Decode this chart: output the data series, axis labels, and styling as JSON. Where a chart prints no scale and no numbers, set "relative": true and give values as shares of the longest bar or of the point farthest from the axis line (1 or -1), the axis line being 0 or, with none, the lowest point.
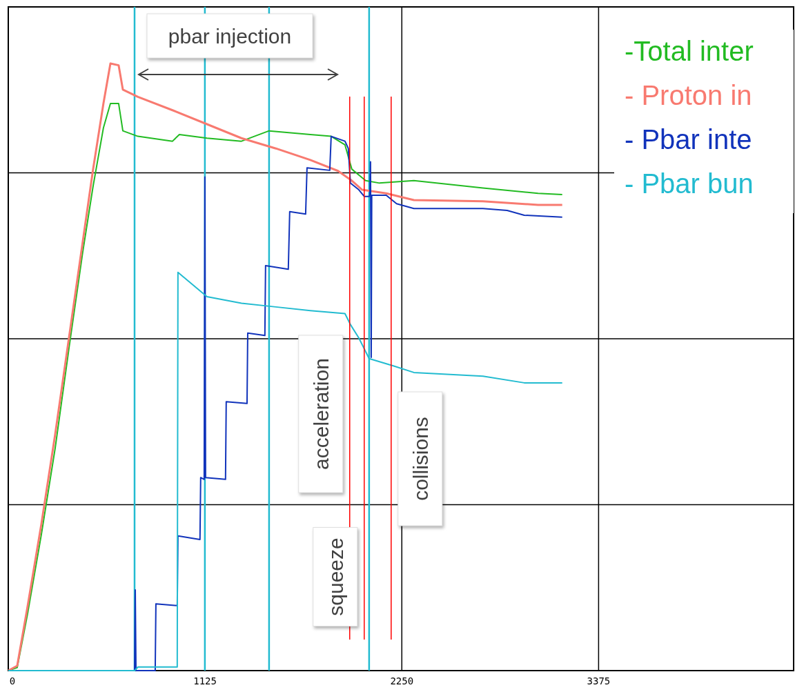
{
  "chart_data": {
    "type": "line",
    "relative": true,
    "xlim": [
      0,
      4490
    ],
    "xticks": [
      0,
      1125,
      2250,
      3375
    ],
    "grid": true,
    "legend": "top right",
    "line_style": "solid",
    "series": [
      {
        "name": "-Total inter",
        "color": "#22bb22",
        "x": [
          0,
          51,
          110,
          189,
          268,
          347,
          426,
          485,
          544,
          584,
          631,
          655,
          741,
          939,
          978,
          1136,
          1333,
          1491,
          1727,
          1846,
          1925,
          1964,
          2043,
          2122,
          2319,
          2714,
          3029,
          3167
        ],
        "values": [
          0,
          0.005,
          0.093,
          0.224,
          0.366,
          0.531,
          0.69,
          0.798,
          0.894,
          0.934,
          0.934,
          0.889,
          0.88,
          0.872,
          0.883,
          0.877,
          0.872,
          0.889,
          0.883,
          0.88,
          0.866,
          0.826,
          0.807,
          0.803,
          0.807,
          0.795,
          0.786,
          0.784
        ]
      },
      {
        "name": "- Proton in",
        "color": "#f87a70",
        "x": [
          0,
          51,
          110,
          189,
          268,
          347,
          426,
          485,
          544,
          584,
          631,
          655,
          741,
          939,
          1136,
          1333,
          1530,
          1727,
          1885,
          1964,
          2023,
          2161,
          2319,
          2714,
          3029,
          3167
        ],
        "values": [
          0,
          0.008,
          0.105,
          0.241,
          0.389,
          0.548,
          0.707,
          0.826,
          0.934,
          1,
          0.997,
          0.957,
          0.945,
          0.923,
          0.9,
          0.877,
          0.86,
          0.841,
          0.823,
          0.807,
          0.792,
          0.786,
          0.775,
          0.773,
          0.767,
          0.767
        ]
      },
      {
        "name": "- Pbar inte",
        "color": "#1133bb",
        "x": [
          0,
          722,
          726,
          730,
          840,
          844,
          966,
          970,
          1096,
          1100,
          1120,
          1124,
          1128,
          1242,
          1246,
          1365,
          1369,
          1467,
          1471,
          1601,
          1609,
          1700,
          1708,
          1838,
          1846,
          1925,
          1944,
          1956,
          2004,
          2035,
          2063,
          2067,
          2071,
          2075,
          2078,
          2161,
          2220,
          2319,
          2714,
          2852,
          2950,
          3167
        ],
        "values": [
          0,
          0,
          0.133,
          0,
          0,
          0.11,
          0.107,
          0.222,
          0.216,
          0.318,
          0.315,
          0.813,
          0.318,
          0.315,
          0.443,
          0.44,
          0.556,
          0.552,
          0.667,
          0.661,
          0.756,
          0.752,
          0.828,
          0.824,
          0.88,
          0.872,
          0.86,
          0.803,
          0.792,
          0.781,
          0.781,
          0.783,
          0.838,
          0.516,
          0.783,
          0.783,
          0.769,
          0.761,
          0.761,
          0.758,
          0.75,
          0.747
        ]
      },
      {
        "name": "- Pbar bun",
        "color": "#22bbd0",
        "x": [
          0,
          722,
          741,
          966,
          970,
          1136,
          1333,
          1530,
          1727,
          1925,
          1956,
          2004,
          2063,
          2201,
          2319,
          2714,
          2950,
          3167
        ],
        "values": [
          0,
          0,
          0.006,
          0.006,
          0.656,
          0.616,
          0.605,
          0.599,
          0.593,
          0.588,
          0.57,
          0.548,
          0.514,
          0.502,
          0.491,
          0.485,
          0.474,
          0.474
        ]
      }
    ],
    "ref_lines": [
      {
        "axis": "x",
        "value": 722,
        "color": "#22bbd0"
      },
      {
        "axis": "x",
        "value": 1124,
        "color": "#22bbd0"
      },
      {
        "axis": "x",
        "value": 1491,
        "color": "#22bbd0"
      },
      {
        "axis": "x",
        "value": 2063,
        "color": "#22bbd0"
      },
      {
        "axis": "x",
        "value": 1952,
        "label": "acceleration",
        "color": "#ff0000"
      },
      {
        "axis": "x",
        "value": 2035,
        "label": "squeeze",
        "color": "#ff0000"
      },
      {
        "axis": "x",
        "value": 2189,
        "label": "collisions",
        "color": "#ff0000"
      }
    ],
    "annotations": [
      "pbar injection"
    ]
  }
}
